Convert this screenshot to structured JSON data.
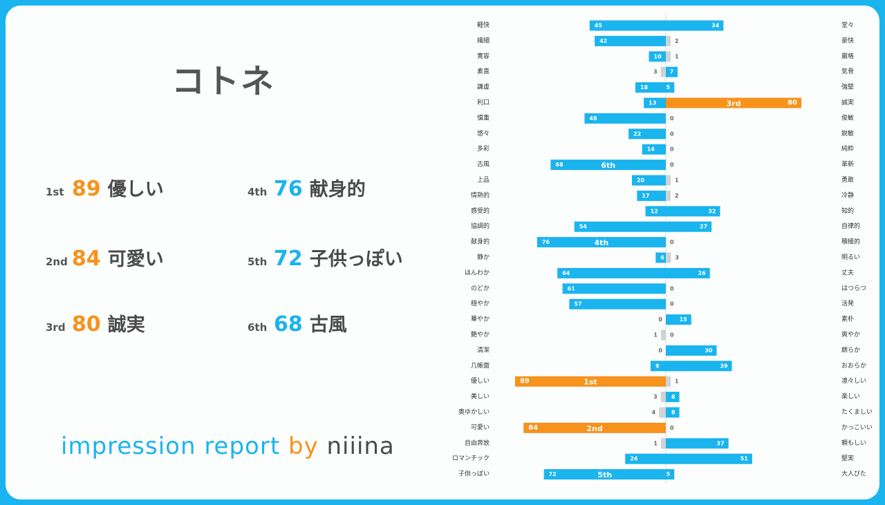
{
  "page": {
    "character_name": "コトネ"
  },
  "ranking": [
    {
      "ord": "1st",
      "value": "89",
      "word": "優しい",
      "color": "#f7921b"
    },
    {
      "ord": "2nd",
      "value": "84",
      "word": "可愛い",
      "color": "#f7921b"
    },
    {
      "ord": "3rd",
      "value": "80",
      "word": "誠実",
      "color": "#f7921b"
    },
    {
      "ord": "4th",
      "value": "76",
      "word": "献身的",
      "color": "#1ab4ee"
    },
    {
      "ord": "5th",
      "value": "72",
      "word": "子供っぽい",
      "color": "#1ab4ee"
    },
    {
      "ord": "6th",
      "value": "68",
      "word": "古風",
      "color": "#1ab4ee"
    }
  ],
  "logo": {
    "part1": "impression report ",
    "part2": "by ",
    "part3": "niiina"
  },
  "colors": {
    "blue": "#1ab4ee",
    "orange": "#f7921b",
    "gray": "#cfd3d6",
    "frame": "#1ab4ee"
  },
  "chart_data": {
    "type": "bar",
    "orientation": "diverging-horizontal",
    "xlim": [
      0,
      100
    ],
    "categories_left": [
      "軽快",
      "繊細",
      "寛容",
      "素直",
      "謙虚",
      "利口",
      "慎重",
      "悠々",
      "多彩",
      "古風",
      "上品",
      "情熱的",
      "感受的",
      "協調的",
      "献身的",
      "静か",
      "ほんわか",
      "のどか",
      "穏やか",
      "華やか",
      "艶やか",
      "清潔",
      "几帳面",
      "優しい",
      "美しい",
      "奥ゆかしい",
      "可愛い",
      "自由奔放",
      "ロマンチック",
      "子供っぽい"
    ],
    "categories_right": [
      "堂々",
      "豪快",
      "厳格",
      "気骨",
      "強堅",
      "誠実",
      "俊敏",
      "鋭敏",
      "純粋",
      "革新",
      "勇敢",
      "冷静",
      "知的",
      "自律的",
      "積極的",
      "明るい",
      "丈夫",
      "はつらつ",
      "活発",
      "素朴",
      "爽やか",
      "朗らか",
      "おおらか",
      "凛々しい",
      "楽しい",
      "たくましい",
      "かっこいい",
      "頼もしい",
      "堅実",
      "大人びた"
    ],
    "series": [
      {
        "side": "left",
        "values": [
          45,
          42,
          10,
          3,
          18,
          13,
          48,
          22,
          14,
          68,
          20,
          17,
          12,
          54,
          76,
          6,
          64,
          61,
          57,
          0,
          1,
          0,
          9,
          89,
          3,
          4,
          84,
          1,
          24,
          72
        ]
      },
      {
        "side": "right",
        "values": [
          34,
          2,
          1,
          7,
          5,
          80,
          0,
          0,
          0,
          0,
          1,
          2,
          32,
          27,
          0,
          3,
          26,
          0,
          0,
          15,
          0,
          30,
          39,
          1,
          8,
          8,
          0,
          37,
          51,
          5
        ]
      }
    ],
    "rank_labels": [
      {
        "side": "left",
        "index": 23,
        "label": "1st"
      },
      {
        "side": "left",
        "index": 26,
        "label": "2nd"
      },
      {
        "side": "right",
        "index": 5,
        "label": "3rd"
      },
      {
        "side": "left",
        "index": 14,
        "label": "4th"
      },
      {
        "side": "left",
        "index": 29,
        "label": "5th"
      },
      {
        "side": "left",
        "index": 9,
        "label": "6th"
      }
    ]
  }
}
